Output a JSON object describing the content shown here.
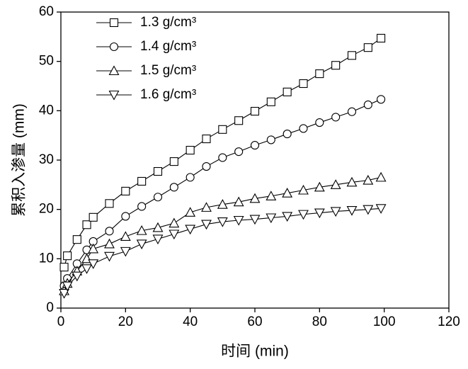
{
  "chart_data": {
    "type": "line",
    "xlabel": "时间 (min)",
    "ylabel": "累积入渗量 (mm)",
    "x": [
      1,
      2,
      5,
      8,
      10,
      15,
      20,
      25,
      30,
      35,
      40,
      45,
      50,
      55,
      60,
      65,
      70,
      75,
      80,
      85,
      90,
      95,
      99
    ],
    "series": [
      {
        "name": "1.3 g/cm³",
        "color": "#000000",
        "marker": "square",
        "values": [
          8.3,
          10.6,
          13.9,
          16.9,
          18.4,
          21.2,
          23.7,
          25.7,
          27.7,
          29.7,
          32,
          34.3,
          36.2,
          38,
          39.9,
          41.8,
          43.8,
          45.5,
          47.5,
          49.2,
          51.2,
          52.8,
          54.7
        ]
      },
      {
        "name": "1.4 g/cm³",
        "color": "#000000",
        "marker": "circle",
        "values": [
          4.5,
          6,
          9,
          11.8,
          13.5,
          15.6,
          18.6,
          20.6,
          22.5,
          24.5,
          26.5,
          28.7,
          30.5,
          31.7,
          33,
          34.1,
          35.3,
          36.4,
          37.6,
          38.7,
          39.8,
          41.2,
          42.3
        ]
      },
      {
        "name": "1.5 g/cm³",
        "color": "#000000",
        "marker": "triangle-up",
        "values": [
          3.5,
          5,
          7.5,
          10,
          12,
          13,
          14.5,
          15.7,
          16.3,
          17.2,
          19.4,
          20.4,
          21,
          21.5,
          22.2,
          22.7,
          23.3,
          23.9,
          24.5,
          25,
          25.5,
          25.9,
          26.5
        ]
      },
      {
        "name": "1.6 g/cm³",
        "color": "#000000",
        "marker": "triangle-down",
        "values": [
          3,
          4.5,
          6.5,
          8,
          9,
          10.5,
          11.5,
          13,
          14,
          15,
          16,
          17,
          17.5,
          17.8,
          18,
          18.3,
          18.6,
          19,
          19.3,
          19.6,
          19.8,
          20,
          20.2
        ]
      }
    ],
    "xlim": [
      0,
      120
    ],
    "xticks": [
      0,
      20,
      40,
      60,
      80,
      100,
      120
    ],
    "ylim": [
      0,
      60
    ],
    "yticks": [
      0,
      10,
      20,
      30,
      40,
      50,
      60
    ],
    "grid": false,
    "legend": "upper left"
  }
}
